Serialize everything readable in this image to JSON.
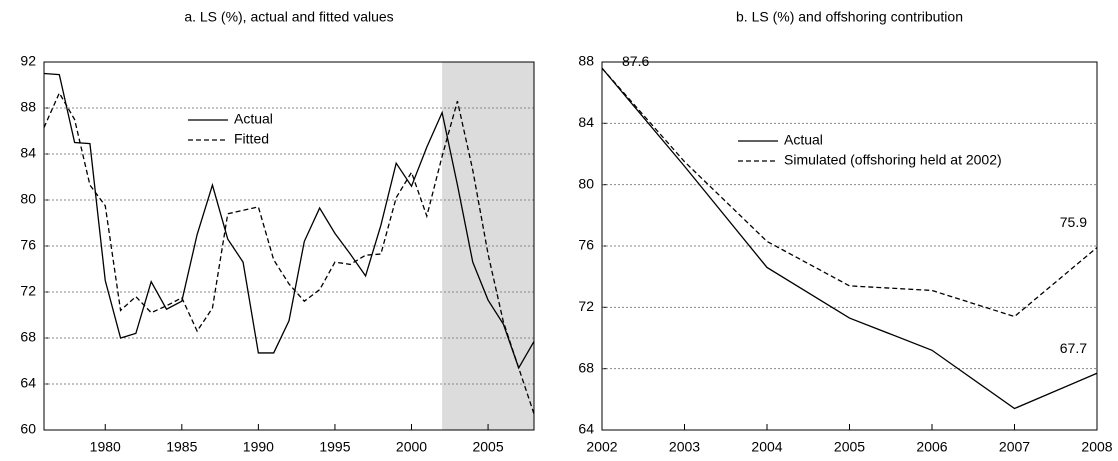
{
  "chart_data": [
    {
      "type": "line",
      "title": "a.  LS (%), actual and fitted values",
      "x": [
        1976,
        1977,
        1978,
        1979,
        1980,
        1981,
        1982,
        1983,
        1984,
        1985,
        1986,
        1987,
        1988,
        1989,
        1990,
        1991,
        1992,
        1993,
        1994,
        1995,
        1996,
        1997,
        1998,
        1999,
        2000,
        2001,
        2002,
        2003,
        2004,
        2005,
        2006,
        2007,
        2008
      ],
      "series": [
        {
          "name": "Actual",
          "color": "#000000",
          "dash": "solid",
          "values": [
            91,
            90.9,
            85,
            84.9,
            73,
            68,
            68.4,
            72.9,
            70.5,
            71.2,
            77,
            81.3,
            76.6,
            74.6,
            66.7,
            66.7,
            69.5,
            76.4,
            79.3,
            77.1,
            75.3,
            73.4,
            77.8,
            83.2,
            81.2,
            84.6,
            87.6,
            81.3,
            74.6,
            71.3,
            69.2,
            65.4,
            67.7
          ]
        },
        {
          "name": "Fitted",
          "color": "#000000",
          "dash": "dashed",
          "values": [
            86.3,
            89.3,
            87,
            81.3,
            79.5,
            70.4,
            71.6,
            70.2,
            70.8,
            71.5,
            68.6,
            70.6,
            78.8,
            79.1,
            79.4,
            74.8,
            72.7,
            71.2,
            72.2,
            74.6,
            74.4,
            75.2,
            75.3,
            80.2,
            82.4,
            78.6,
            83.8,
            88.6,
            82.6,
            75.3,
            69.4,
            65.4,
            61.4
          ]
        }
      ],
      "xlim": [
        1976,
        2008
      ],
      "xticks": [
        1980,
        1985,
        1990,
        1995,
        2000,
        2005
      ],
      "ylim": [
        60,
        92
      ],
      "yticks": [
        60,
        64,
        68,
        72,
        76,
        80,
        84,
        88,
        92
      ],
      "grid": true,
      "shaded_region": [
        2002,
        2008
      ],
      "shade_color": "#dcdcdc"
    },
    {
      "type": "line",
      "title": "b.  LS (%) and offshoring contribution",
      "x": [
        2002,
        2003,
        2004,
        2005,
        2006,
        2007,
        2008
      ],
      "series": [
        {
          "name": "Actual",
          "color": "#000000",
          "dash": "solid",
          "values": [
            87.6,
            81.2,
            74.6,
            71.3,
            69.2,
            65.4,
            67.7
          ],
          "value_labels": [
            "87.6",
            null,
            null,
            null,
            null,
            null,
            "67.7"
          ]
        },
        {
          "name": "Simulated (offshoring held at 2002)",
          "color": "#000000",
          "dash": "dashed",
          "values": [
            87.6,
            81.5,
            76.3,
            73.4,
            73.1,
            71.4,
            75.9
          ],
          "value_labels": [
            null,
            null,
            null,
            null,
            null,
            null,
            "75.9"
          ]
        }
      ],
      "xlim": [
        2002,
        2008
      ],
      "xticks": [
        2002,
        2003,
        2004,
        2005,
        2006,
        2007,
        2008
      ],
      "ylim": [
        64,
        88
      ],
      "yticks": [
        64,
        68,
        72,
        76,
        80,
        84,
        88
      ],
      "grid": true
    }
  ]
}
